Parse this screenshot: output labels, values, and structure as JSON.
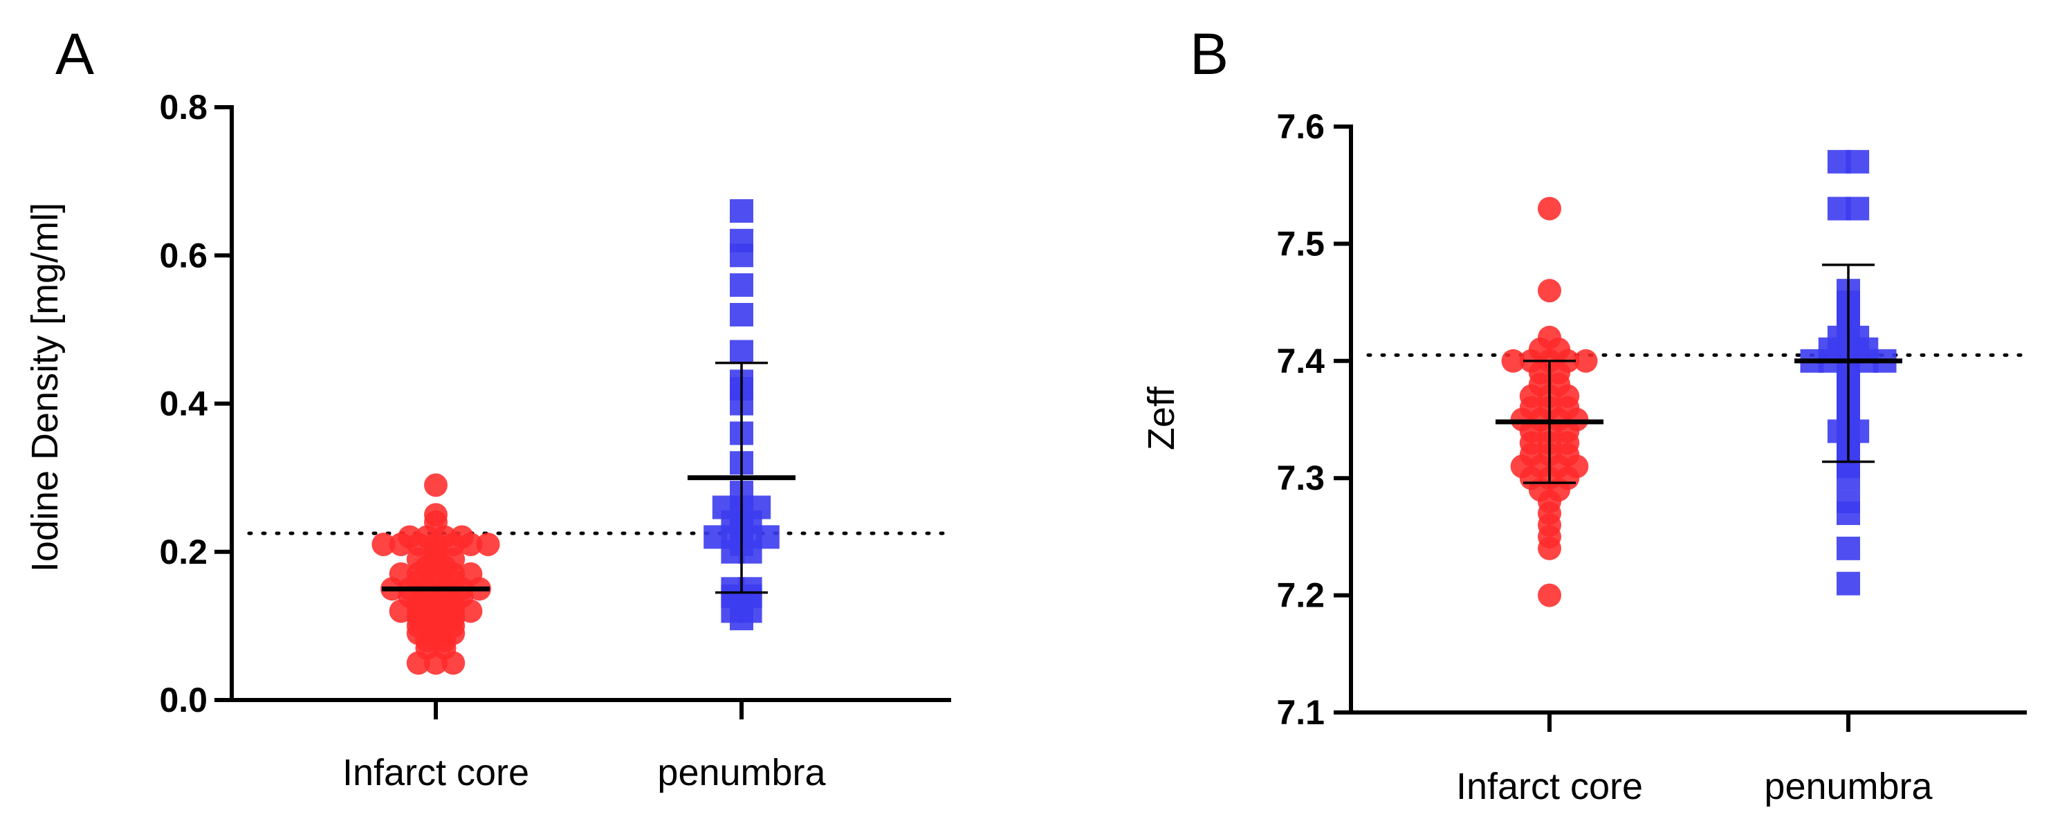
{
  "figure": {
    "background": "#ffffff",
    "colors": {
      "infarct_core": "#ff2a2a",
      "penumbra": "#3c3cf0",
      "axis": "#000000"
    }
  },
  "chart_data": [
    {
      "panel": "A",
      "type": "scatter",
      "title": "",
      "xlabel": "",
      "ylabel": "Iodine Density [mg/ml]",
      "ylim": [
        0.0,
        0.8
      ],
      "yticks": [
        "0.0",
        "0.2",
        "0.4",
        "0.6",
        "0.8"
      ],
      "categories": [
        "Infarct core",
        "penumbra"
      ],
      "reference_line": 0.225,
      "legend": "none",
      "grid": false,
      "series": [
        {
          "category": "Infarct core",
          "marker": "circle",
          "color": "#ff2a2a",
          "mean": 0.15,
          "sd_low": 0.15,
          "sd_high": 0.15,
          "values": [
            0.29,
            0.25,
            0.24,
            0.22,
            0.22,
            0.22,
            0.22,
            0.21,
            0.21,
            0.21,
            0.21,
            0.21,
            0.21,
            0.21,
            0.2,
            0.19,
            0.19,
            0.19,
            0.18,
            0.18,
            0.17,
            0.17,
            0.17,
            0.17,
            0.17,
            0.16,
            0.16,
            0.16,
            0.15,
            0.15,
            0.15,
            0.15,
            0.15,
            0.15,
            0.14,
            0.14,
            0.14,
            0.14,
            0.13,
            0.13,
            0.13,
            0.12,
            0.12,
            0.12,
            0.12,
            0.12,
            0.11,
            0.11,
            0.11,
            0.1,
            0.1,
            0.1,
            0.09,
            0.09,
            0.09,
            0.08,
            0.08,
            0.07,
            0.07,
            0.05,
            0.05,
            0.05
          ]
        },
        {
          "category": "penumbra",
          "marker": "square",
          "color": "#3c3cf0",
          "mean": 0.3,
          "sd_low": 0.145,
          "sd_high": 0.455,
          "values": [
            0.66,
            0.62,
            0.6,
            0.56,
            0.52,
            0.47,
            0.43,
            0.42,
            0.4,
            0.36,
            0.32,
            0.28,
            0.26,
            0.26,
            0.26,
            0.25,
            0.24,
            0.24,
            0.23,
            0.22,
            0.22,
            0.22,
            0.22,
            0.21,
            0.2,
            0.2,
            0.15,
            0.15,
            0.14,
            0.14,
            0.13,
            0.12,
            0.12,
            0.11
          ]
        }
      ]
    },
    {
      "panel": "B",
      "type": "scatter",
      "title": "",
      "xlabel": "",
      "ylabel": "Zeff",
      "ylim": [
        7.1,
        7.6
      ],
      "yticks": [
        "7.1",
        "7.2",
        "7.3",
        "7.4",
        "7.5",
        "7.6"
      ],
      "categories": [
        "Infarct core",
        "penumbra"
      ],
      "reference_line": 7.405,
      "legend": "none",
      "grid": false,
      "series": [
        {
          "category": "Infarct core",
          "marker": "circle",
          "color": "#ff2a2a",
          "mean": 7.348,
          "sd_low": 7.296,
          "sd_high": 7.4,
          "values": [
            7.53,
            7.46,
            7.42,
            7.41,
            7.41,
            7.4,
            7.4,
            7.4,
            7.4,
            7.4,
            7.39,
            7.39,
            7.38,
            7.38,
            7.37,
            7.37,
            7.37,
            7.36,
            7.36,
            7.36,
            7.35,
            7.35,
            7.35,
            7.35,
            7.34,
            7.34,
            7.34,
            7.33,
            7.33,
            7.33,
            7.32,
            7.32,
            7.32,
            7.31,
            7.31,
            7.31,
            7.31,
            7.3,
            7.3,
            7.3,
            7.29,
            7.29,
            7.28,
            7.27,
            7.26,
            7.25,
            7.24,
            7.2
          ]
        },
        {
          "category": "penumbra",
          "marker": "square",
          "color": "#3c3cf0",
          "mean": 7.4,
          "sd_low": 7.314,
          "sd_high": 7.482,
          "values": [
            7.57,
            7.57,
            7.53,
            7.53,
            7.46,
            7.45,
            7.44,
            7.43,
            7.42,
            7.42,
            7.41,
            7.41,
            7.41,
            7.4,
            7.4,
            7.4,
            7.4,
            7.4,
            7.39,
            7.38,
            7.37,
            7.36,
            7.35,
            7.34,
            7.34,
            7.33,
            7.32,
            7.31,
            7.3,
            7.28,
            7.27,
            7.24,
            7.21
          ]
        }
      ]
    }
  ]
}
